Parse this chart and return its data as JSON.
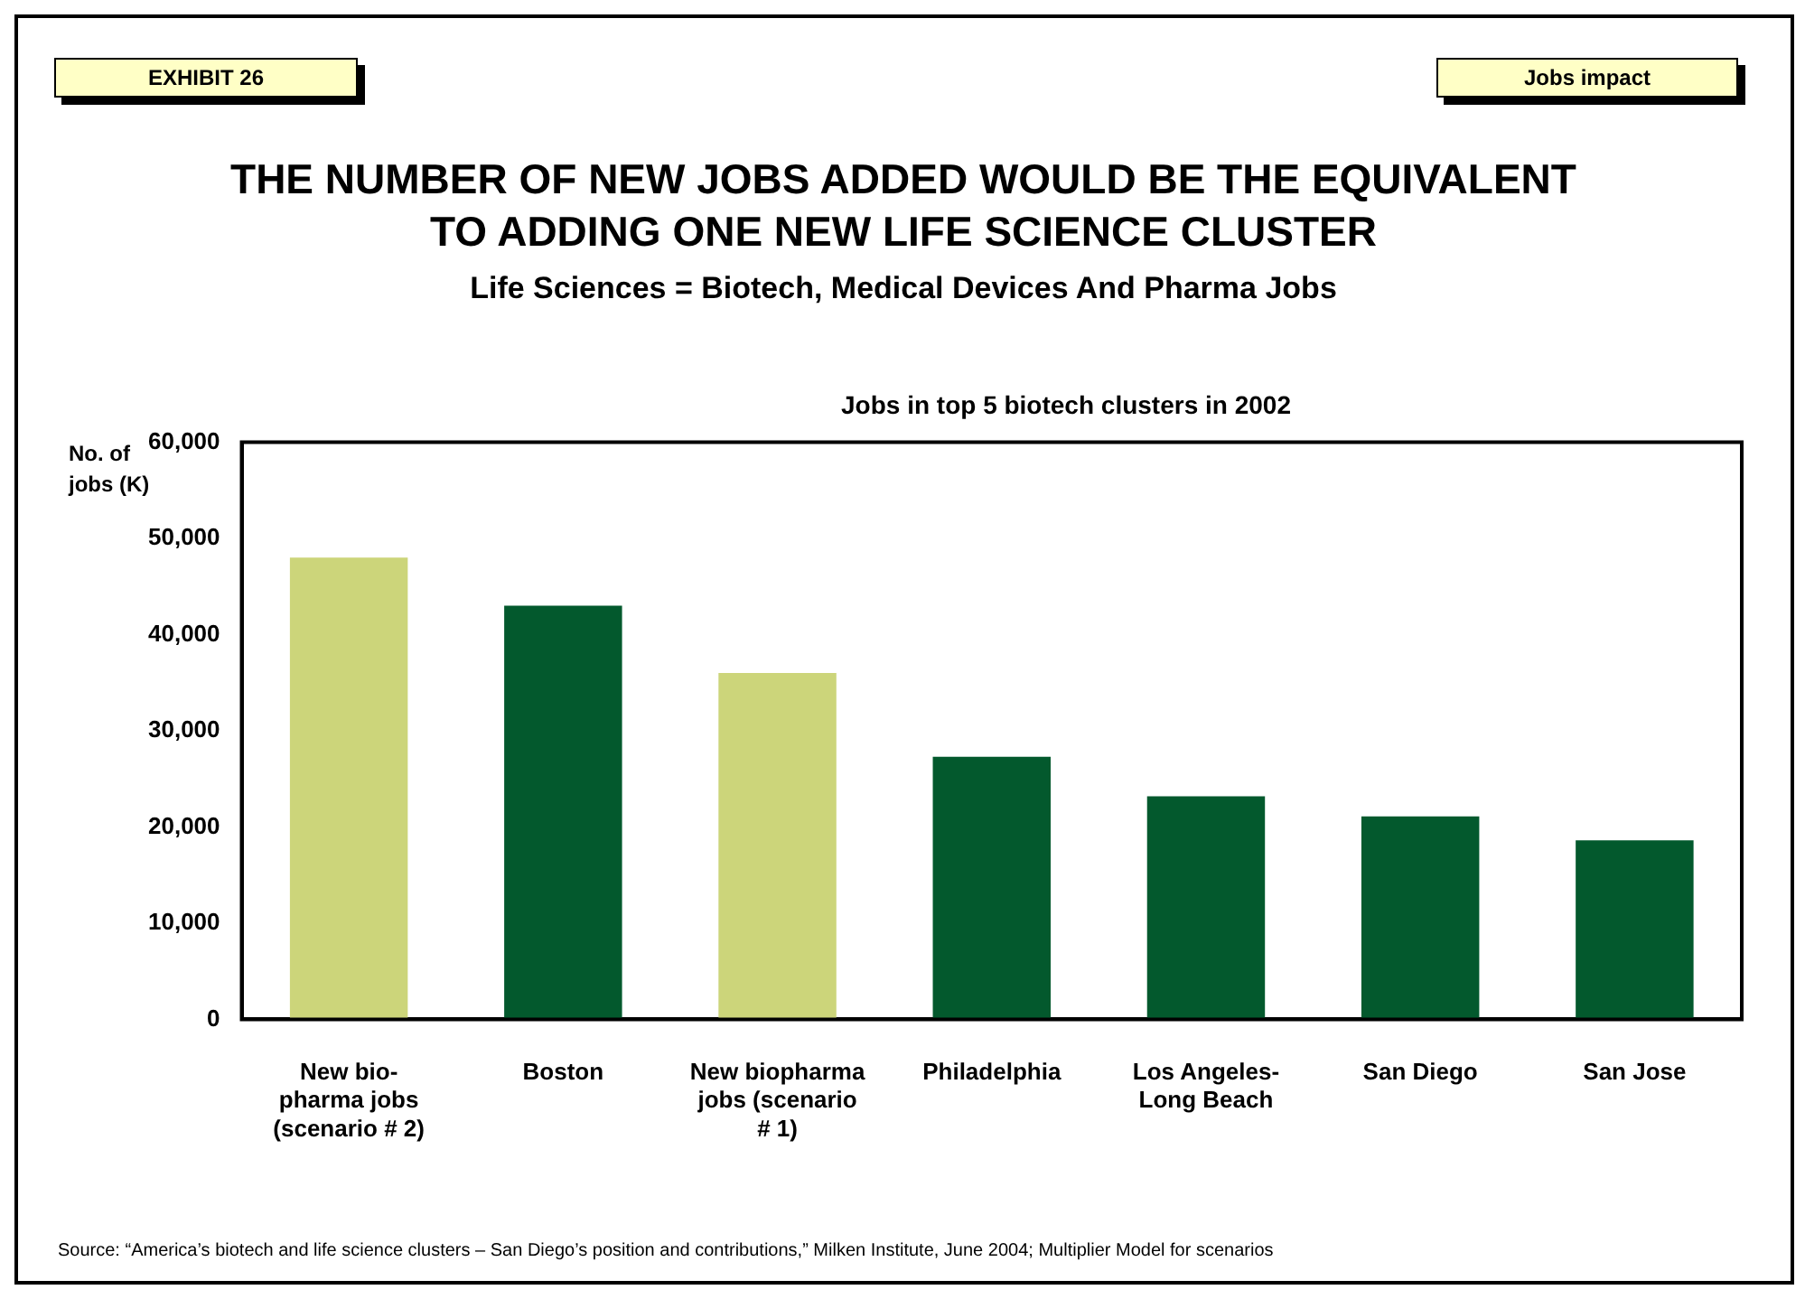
{
  "chart_data": {
    "type": "bar",
    "title": "THE NUMBER OF NEW JOBS ADDED WOULD BE THE EQUIVALENT TO ADDING ONE NEW LIFE SCIENCE CLUSTER",
    "subtitle": "Life Sciences = Biotech, Medical Devices And Pharma Jobs",
    "ylabel": "No. of jobs (K)",
    "annotations": [
      "EXHIBIT 26",
      "Jobs impact",
      "Jobs in top 5 biotech clusters in 2002",
      "Source:  “America’s biotech and life science clusters – San Diego’s position and contributions,” Milken Institute, June 2004; Multiplier Model for scenarios"
    ],
    "categories": [
      "New bio-pharma jobs (scenario # 2)",
      "Boston",
      "New biopharma jobs (scenario # 1)",
      "Philadelphia",
      "Los Angeles-Long Beach",
      "San Diego",
      "San Jose"
    ],
    "values": [
      48000,
      43000,
      36000,
      27300,
      23200,
      21100,
      18600
    ],
    "colors": [
      "#ccd57a",
      "#03592d",
      "#ccd57a",
      "#03592d",
      "#03592d",
      "#03592d",
      "#03592d"
    ],
    "ylim": [
      0,
      60000
    ],
    "yticks": [
      0,
      {
        "value": 10000,
        "label": "10,000"
      },
      {
        "value": 20000,
        "label": "20,000"
      },
      {
        "value": 30000,
        "label": "30,000"
      },
      {
        "value": 40000,
        "label": "40,000"
      },
      {
        "value": 50000,
        "label": "50,000"
      },
      {
        "value": 60000,
        "label": "60,000"
      }
    ],
    "legend": false
  }
}
